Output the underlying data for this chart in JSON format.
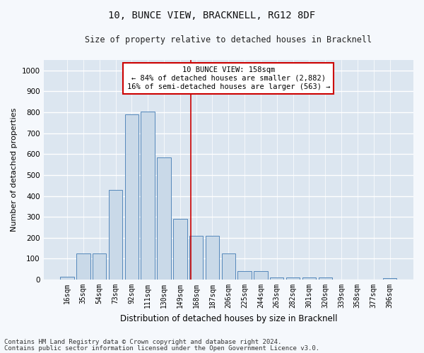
{
  "title": "10, BUNCE VIEW, BRACKNELL, RG12 8DF",
  "subtitle": "Size of property relative to detached houses in Bracknell",
  "xlabel": "Distribution of detached houses by size in Bracknell",
  "ylabel": "Number of detached properties",
  "bin_labels": [
    "16sqm",
    "35sqm",
    "54sqm",
    "73sqm",
    "92sqm",
    "111sqm",
    "130sqm",
    "149sqm",
    "168sqm",
    "187sqm",
    "206sqm",
    "225sqm",
    "244sqm",
    "263sqm",
    "282sqm",
    "301sqm",
    "320sqm",
    "339sqm",
    "358sqm",
    "377sqm",
    "396sqm"
  ],
  "bar_values": [
    15,
    125,
    125,
    430,
    790,
    805,
    585,
    290,
    210,
    210,
    125,
    40,
    40,
    10,
    10,
    10,
    10,
    0,
    0,
    0,
    8
  ],
  "bar_color": "#c9d9e8",
  "bar_edge_color": "#5588bb",
  "bar_width": 0.85,
  "ylim": [
    0,
    1050
  ],
  "yticks": [
    0,
    100,
    200,
    300,
    400,
    500,
    600,
    700,
    800,
    900,
    1000
  ],
  "vline_x": 7.68,
  "vline_color": "#cc0000",
  "annotation_text": "10 BUNCE VIEW: 158sqm\n← 84% of detached houses are smaller (2,882)\n16% of semi-detached houses are larger (563) →",
  "annotation_box_facecolor": "#ffffff",
  "annotation_box_edgecolor": "#cc0000",
  "bg_color": "#dce6f0",
  "grid_color": "#ffffff",
  "fig_facecolor": "#f5f8fc",
  "title_fontsize": 10,
  "subtitle_fontsize": 8.5,
  "ylabel_fontsize": 8,
  "xlabel_fontsize": 8.5,
  "tick_fontsize": 7,
  "annotation_fontsize": 7.5,
  "footnote1": "Contains HM Land Registry data © Crown copyright and database right 2024.",
  "footnote2": "Contains public sector information licensed under the Open Government Licence v3.0.",
  "footnote_fontsize": 6.5
}
